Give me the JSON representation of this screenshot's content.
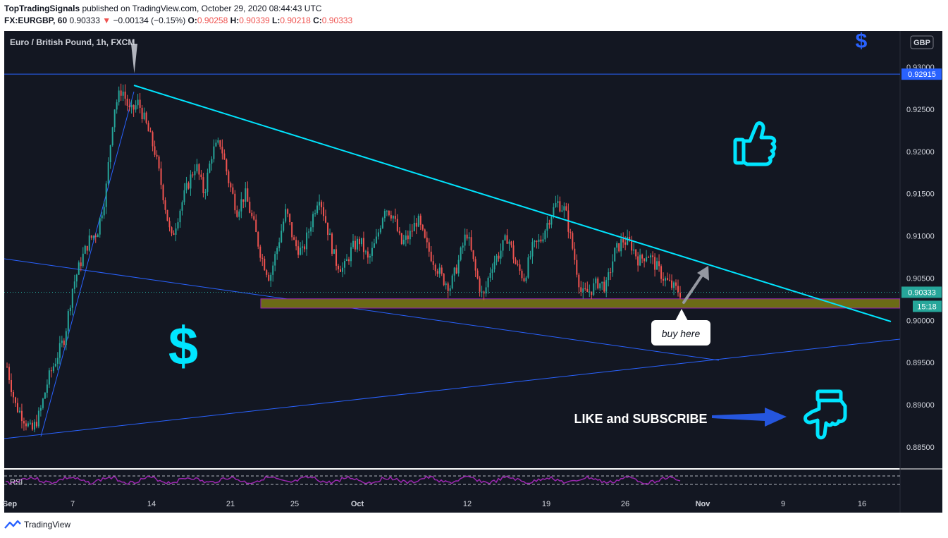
{
  "header": {
    "publisher": "TopTradingSignals",
    "published_text": " published on TradingView.com, October 29, 2020 08:44:43 UTC",
    "symbol": "FX:EURGBP, 60",
    "last": "0.90333",
    "change_arrow": "▼",
    "change": "−0.00134 (−0.15%)",
    "o_label": "O:",
    "o": "0.90258",
    "h_label": "H:",
    "h": "0.90339",
    "l_label": "L:",
    "l": "0.90218",
    "c_label": "C:",
    "c": "0.90333"
  },
  "chart": {
    "legend": "Euro / British Pound, 1h, FXCM",
    "currency_badge": "GBP",
    "price_badges": {
      "resistance": "0.92915",
      "last": "0.90333",
      "countdown": "15:18"
    },
    "rsi_label": "RSI",
    "callout": "buy here",
    "cta": "LIKE and SUBSCRIBE",
    "dollar_sign": "$",
    "colors": {
      "bg": "#131722",
      "up": "#26a69a",
      "down": "#ef5350",
      "trendline": "#00e5ff",
      "channel": "#2962ff",
      "zone": "#6b6b16",
      "accent": "#00e5ff"
    },
    "icons": [
      "thumbs-up-icon",
      "pointing-down-hand-icon",
      "dollar-icon",
      "arrow-icon"
    ]
  },
  "chart_data": {
    "type": "candlestick",
    "symbol": "FX:EURGBP",
    "timeframe": "1h",
    "y_ticks": [
      "0.93000",
      "0.92500",
      "0.92000",
      "0.91500",
      "0.91000",
      "0.90500",
      "0.90000",
      "0.89500",
      "0.89000",
      "0.88500"
    ],
    "x_ticks": [
      "Sep",
      "7",
      "14",
      "21",
      "25",
      "Oct",
      "12",
      "19",
      "26",
      "Nov",
      "9",
      "16"
    ],
    "ylim": [
      0.883,
      0.935
    ],
    "path": [
      [
        0,
        0.8945
      ],
      [
        2,
        0.89
      ],
      [
        4,
        0.8885
      ],
      [
        6,
        0.8868
      ],
      [
        8,
        0.889
      ],
      [
        10,
        0.893
      ],
      [
        12,
        0.8955
      ],
      [
        14,
        0.898
      ],
      [
        16,
        0.904
      ],
      [
        18,
        0.907
      ],
      [
        20,
        0.9095
      ],
      [
        22,
        0.9105
      ],
      [
        24,
        0.915
      ],
      [
        26,
        0.925
      ],
      [
        28,
        0.9275
      ],
      [
        30,
        0.9245
      ],
      [
        32,
        0.9258
      ],
      [
        34,
        0.923
      ],
      [
        36,
        0.92
      ],
      [
        38,
        0.915
      ],
      [
        40,
        0.9095
      ],
      [
        42,
        0.913
      ],
      [
        44,
        0.916
      ],
      [
        46,
        0.9185
      ],
      [
        48,
        0.915
      ],
      [
        50,
        0.92
      ],
      [
        52,
        0.921
      ],
      [
        54,
        0.9165
      ],
      [
        56,
        0.913
      ],
      [
        58,
        0.915
      ],
      [
        60,
        0.9115
      ],
      [
        62,
        0.9075
      ],
      [
        64,
        0.905
      ],
      [
        66,
        0.909
      ],
      [
        68,
        0.913
      ],
      [
        70,
        0.909
      ],
      [
        72,
        0.908
      ],
      [
        74,
        0.9115
      ],
      [
        76,
        0.915
      ],
      [
        78,
        0.911
      ],
      [
        80,
        0.907
      ],
      [
        82,
        0.906
      ],
      [
        84,
        0.9085
      ],
      [
        86,
        0.9095
      ],
      [
        88,
        0.907
      ],
      [
        90,
        0.9095
      ],
      [
        92,
        0.9135
      ],
      [
        94,
        0.9125
      ],
      [
        96,
        0.909
      ],
      [
        98,
        0.91
      ],
      [
        100,
        0.912
      ],
      [
        102,
        0.909
      ],
      [
        104,
        0.907
      ],
      [
        106,
        0.905
      ],
      [
        108,
        0.904
      ],
      [
        110,
        0.907
      ],
      [
        112,
        0.9105
      ],
      [
        114,
        0.906
      ],
      [
        116,
        0.9025
      ],
      [
        118,
        0.9065
      ],
      [
        120,
        0.908
      ],
      [
        122,
        0.91
      ],
      [
        124,
        0.9065
      ],
      [
        126,
        0.905
      ],
      [
        128,
        0.9085
      ],
      [
        130,
        0.9095
      ],
      [
        132,
        0.912
      ],
      [
        134,
        0.914
      ],
      [
        136,
        0.913
      ],
      [
        138,
        0.908
      ],
      [
        140,
        0.903
      ],
      [
        142,
        0.9035
      ],
      [
        144,
        0.9045
      ],
      [
        146,
        0.904
      ],
      [
        148,
        0.908
      ],
      [
        150,
        0.9095
      ],
      [
        152,
        0.909
      ],
      [
        154,
        0.907
      ],
      [
        156,
        0.908
      ],
      [
        158,
        0.9065
      ],
      [
        160,
        0.905
      ],
      [
        162,
        0.904
      ],
      [
        164,
        0.9033
      ]
    ],
    "resistance_level": 0.92915,
    "support_zone": [
      0.90145,
      0.90255
    ],
    "last_price": 0.90333,
    "rsi_overbought": 70,
    "rsi_oversold": 30
  }
}
